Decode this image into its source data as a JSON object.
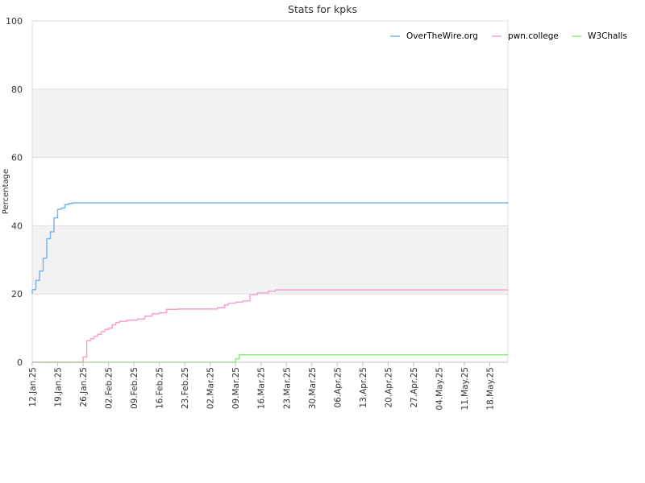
{
  "chart_data": {
    "type": "line",
    "title": "Stats for kpks",
    "ylabel": "Percentage",
    "xlabel": "",
    "ylim": [
      0,
      100
    ],
    "xlim": [
      "2025-01-12",
      "2025-05-23"
    ],
    "y_ticks": [
      0,
      20,
      40,
      60,
      80,
      100
    ],
    "x_ticks": [
      {
        "date": "2025-01-12",
        "label": "12.Jan.25"
      },
      {
        "date": "2025-01-19",
        "label": "19.Jan.25"
      },
      {
        "date": "2025-01-26",
        "label": "26.Jan.25"
      },
      {
        "date": "2025-02-02",
        "label": "02.Feb.25"
      },
      {
        "date": "2025-02-09",
        "label": "09.Feb.25"
      },
      {
        "date": "2025-02-16",
        "label": "16.Feb.25"
      },
      {
        "date": "2025-02-23",
        "label": "23.Feb.25"
      },
      {
        "date": "2025-03-02",
        "label": "02.Mar.25"
      },
      {
        "date": "2025-03-09",
        "label": "09.Mar.25"
      },
      {
        "date": "2025-03-16",
        "label": "16.Mar.25"
      },
      {
        "date": "2025-03-23",
        "label": "23.Mar.25"
      },
      {
        "date": "2025-03-30",
        "label": "30.Mar.25"
      },
      {
        "date": "2025-04-06",
        "label": "06.Apr.25"
      },
      {
        "date": "2025-04-13",
        "label": "13.Apr.25"
      },
      {
        "date": "2025-04-20",
        "label": "20.Apr.25"
      },
      {
        "date": "2025-04-27",
        "label": "27.Apr.25"
      },
      {
        "date": "2025-05-04",
        "label": "04.May.25"
      },
      {
        "date": "2025-05-11",
        "label": "11.May.25"
      },
      {
        "date": "2025-05-18",
        "label": "18.May.25"
      }
    ],
    "grid": "horizontal bands",
    "legend_position": "top-right",
    "series": [
      {
        "name": "OverTheWire.org",
        "color": "#7cb5ec",
        "step": true,
        "points": [
          [
            "2025-01-12",
            20.0
          ],
          [
            "2025-01-12",
            21.3
          ],
          [
            "2025-01-13",
            21.8
          ],
          [
            "2025-01-13",
            24.0
          ],
          [
            "2025-01-14",
            26.4
          ],
          [
            "2025-01-14",
            26.7
          ],
          [
            "2025-01-15",
            27.0
          ],
          [
            "2025-01-15",
            30.5
          ],
          [
            "2025-01-16",
            34.0
          ],
          [
            "2025-01-16",
            36.2
          ],
          [
            "2025-01-17",
            37.0
          ],
          [
            "2025-01-17",
            38.2
          ],
          [
            "2025-01-18",
            39.5
          ],
          [
            "2025-01-18",
            42.3
          ],
          [
            "2025-01-19",
            44.0
          ],
          [
            "2025-01-19",
            44.8
          ],
          [
            "2025-01-20",
            45.2
          ],
          [
            "2025-01-21",
            46.2
          ],
          [
            "2025-01-22",
            46.5
          ],
          [
            "2025-01-23",
            46.7
          ],
          [
            "2025-05-23",
            46.8
          ]
        ]
      },
      {
        "name": "pwn.college",
        "color": "#f7a1cf",
        "step": true,
        "points": [
          [
            "2025-01-12",
            0.0
          ],
          [
            "2025-01-26",
            0.0
          ],
          [
            "2025-01-26",
            1.5
          ],
          [
            "2025-01-27",
            4.0
          ],
          [
            "2025-01-27",
            6.3
          ],
          [
            "2025-01-28",
            6.9
          ],
          [
            "2025-01-29",
            7.6
          ],
          [
            "2025-01-30",
            8.2
          ],
          [
            "2025-01-31",
            9.0
          ],
          [
            "2025-02-01",
            9.6
          ],
          [
            "2025-02-02",
            10.0
          ],
          [
            "2025-02-03",
            11.0
          ],
          [
            "2025-02-04",
            11.6
          ],
          [
            "2025-02-05",
            12.0
          ],
          [
            "2025-02-07",
            12.3
          ],
          [
            "2025-02-10",
            12.7
          ],
          [
            "2025-02-12",
            13.5
          ],
          [
            "2025-02-14",
            14.2
          ],
          [
            "2025-02-16",
            14.5
          ],
          [
            "2025-02-18",
            15.5
          ],
          [
            "2025-02-21",
            15.6
          ],
          [
            "2025-03-04",
            16.0
          ],
          [
            "2025-03-06",
            16.8
          ],
          [
            "2025-03-07",
            17.3
          ],
          [
            "2025-03-09",
            17.6
          ],
          [
            "2025-03-11",
            18.0
          ],
          [
            "2025-03-13",
            18.3
          ],
          [
            "2025-03-13",
            19.8
          ],
          [
            "2025-03-15",
            20.3
          ],
          [
            "2025-03-18",
            20.8
          ],
          [
            "2025-03-20",
            21.2
          ],
          [
            "2025-05-23",
            21.2
          ]
        ]
      },
      {
        "name": "W3Challs",
        "color": "#90ed7d",
        "step": true,
        "points": [
          [
            "2025-01-12",
            0.0
          ],
          [
            "2025-03-09",
            0.0
          ],
          [
            "2025-03-09",
            1.0
          ],
          [
            "2025-03-10",
            2.2
          ],
          [
            "2025-05-23",
            2.2
          ]
        ]
      }
    ]
  }
}
